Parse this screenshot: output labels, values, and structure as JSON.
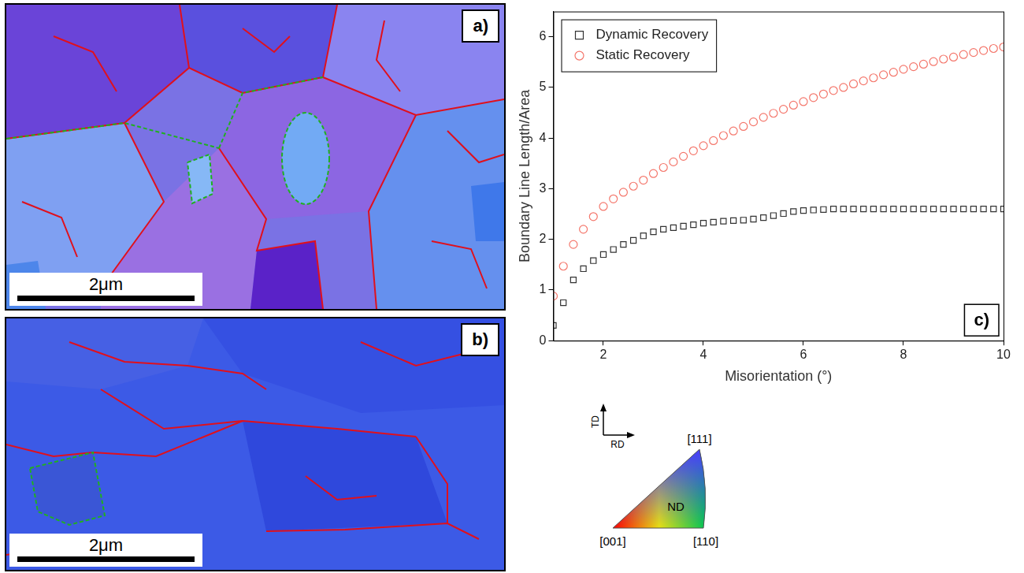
{
  "panels": [
    {
      "label": "a)",
      "scale_bar": "2μm"
    },
    {
      "label": "b)",
      "scale_bar": "2μm"
    }
  ],
  "ipf_key": {
    "vertices": [
      "[111]",
      "[001]",
      "[110]"
    ],
    "center": "ND",
    "axes": [
      "TD",
      "RD"
    ]
  },
  "chart_data": {
    "type": "scatter",
    "panel_label": "c)",
    "x_label": "Misorientation (°)",
    "y_label": "Boundary Line Length/Area",
    "x": [
      1.0,
      1.2,
      1.4,
      1.6,
      1.8,
      2.0,
      2.2,
      2.4,
      2.6,
      2.8,
      3.0,
      3.2,
      3.4,
      3.6,
      3.8,
      4.0,
      4.2,
      4.4,
      4.6,
      4.8,
      5.0,
      5.2,
      5.4,
      5.6,
      5.8,
      6.0,
      6.2,
      6.4,
      6.6,
      6.8,
      7.0,
      7.2,
      7.4,
      7.6,
      7.8,
      8.0,
      8.2,
      8.4,
      8.6,
      8.8,
      9.0,
      9.2,
      9.4,
      9.6,
      9.8,
      10.0
    ],
    "series": [
      {
        "name": "Dynamic Recovery",
        "color": "#333333",
        "marker": "square",
        "values": [
          0.3,
          0.75,
          1.2,
          1.42,
          1.58,
          1.7,
          1.8,
          1.9,
          1.98,
          2.07,
          2.15,
          2.2,
          2.23,
          2.26,
          2.29,
          2.32,
          2.34,
          2.36,
          2.37,
          2.38,
          2.4,
          2.43,
          2.47,
          2.51,
          2.55,
          2.57,
          2.58,
          2.59,
          2.6,
          2.6,
          2.6,
          2.6,
          2.6,
          2.6,
          2.6,
          2.6,
          2.6,
          2.6,
          2.6,
          2.6,
          2.6,
          2.6,
          2.6,
          2.6,
          2.6,
          2.6
        ]
      },
      {
        "name": "Static Recovery",
        "color": "#f4766b",
        "marker": "circle",
        "values": [
          0.88,
          1.47,
          1.9,
          2.2,
          2.45,
          2.65,
          2.8,
          2.93,
          3.05,
          3.17,
          3.3,
          3.42,
          3.53,
          3.64,
          3.75,
          3.85,
          3.95,
          4.05,
          4.14,
          4.23,
          4.32,
          4.41,
          4.49,
          4.57,
          4.65,
          4.72,
          4.8,
          4.87,
          4.94,
          5.0,
          5.07,
          5.13,
          5.19,
          5.25,
          5.3,
          5.36,
          5.41,
          5.46,
          5.51,
          5.56,
          5.6,
          5.65,
          5.69,
          5.73,
          5.77,
          5.8
        ]
      }
    ],
    "xlim": [
      1,
      10
    ],
    "xticks": [
      2,
      4,
      6,
      8,
      10
    ],
    "ylim": [
      0,
      6.5
    ],
    "yticks": [
      0,
      1,
      2,
      3,
      4,
      5,
      6
    ],
    "legend": "upper left",
    "grid": false
  }
}
